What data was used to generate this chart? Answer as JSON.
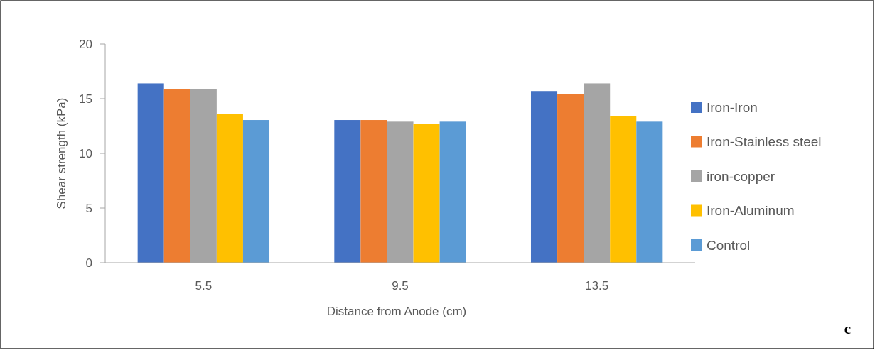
{
  "chart_data": {
    "type": "bar",
    "xlabel": "Distance from Anode (cm)",
    "ylabel": "Shear strength (kPa)",
    "categories": [
      "5.5",
      "9.5",
      "13.5"
    ],
    "series": [
      {
        "name": "Iron-Iron",
        "color": "#4472c4",
        "values": [
          16.4,
          13.05,
          15.7
        ]
      },
      {
        "name": "Iron-Stainless steel",
        "color": "#ed7d31",
        "values": [
          15.9,
          13.05,
          15.45
        ]
      },
      {
        "name": "iron-copper",
        "color": "#a5a5a5",
        "values": [
          15.9,
          12.9,
          16.4
        ]
      },
      {
        "name": "Iron-Aluminum",
        "color": "#ffc000",
        "values": [
          13.6,
          12.7,
          13.4
        ]
      },
      {
        "name": "Control",
        "color": "#5b9bd5",
        "values": [
          13.05,
          12.9,
          12.9
        ]
      }
    ],
    "ylim": [
      0,
      20
    ],
    "yticks": [
      0,
      5,
      10,
      15,
      20
    ],
    "legend": "right",
    "annotations": [
      "c"
    ]
  }
}
